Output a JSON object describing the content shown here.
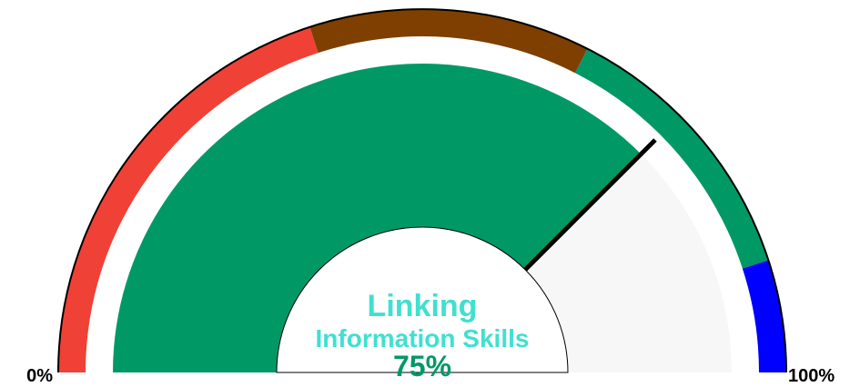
{
  "chart_data": {
    "type": "gauge",
    "title_lines": [
      "Linking",
      "Information Skills"
    ],
    "value": 75,
    "value_label": "75%",
    "color": "#009966",
    "rest_color": "#f7f7f7",
    "ylim": [
      0,
      100
    ],
    "ticks": [
      {
        "value": 0,
        "label": "0%"
      },
      {
        "value": 100,
        "label": "100%"
      }
    ],
    "bands": [
      {
        "from": 0,
        "to": 40,
        "color": "#ef4136"
      },
      {
        "from": 40,
        "to": 65,
        "color": "#7f3f00"
      },
      {
        "from": 65,
        "to": 90,
        "color": "#009966"
      },
      {
        "from": 90,
        "to": 100,
        "color": "#0000ff"
      }
    ]
  }
}
